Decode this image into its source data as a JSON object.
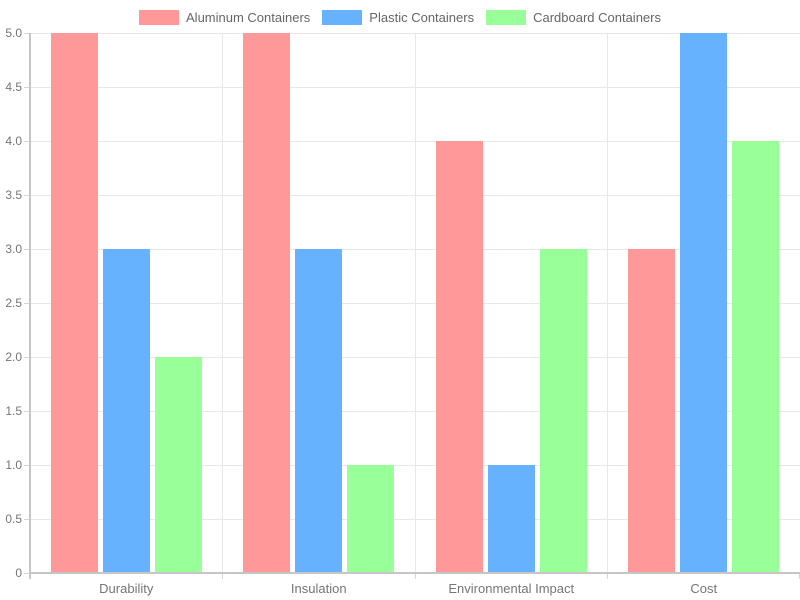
{
  "chart_data": {
    "type": "bar",
    "title": "",
    "xlabel": "",
    "ylabel": "",
    "categories": [
      "Durability",
      "Insulation",
      "Environmental Impact",
      "Cost"
    ],
    "series": [
      {
        "name": "Aluminum Containers",
        "color": "#FF9999",
        "values": [
          5,
          5,
          4,
          3
        ]
      },
      {
        "name": "Plastic Containers",
        "color": "#66B2FF",
        "values": [
          3,
          3,
          1,
          5
        ]
      },
      {
        "name": "Cardboard Containers",
        "color": "#99FF99",
        "values": [
          2,
          1,
          3,
          4
        ]
      }
    ],
    "ylim": [
      0,
      5
    ],
    "ytick_step": 0.5,
    "ytick_labels": [
      "0",
      "0.5",
      "1.0",
      "1.5",
      "2.0",
      "2.5",
      "3.0",
      "3.5",
      "4.0",
      "4.5",
      "5.0"
    ],
    "grid": true,
    "legend_position": "top",
    "style": {
      "background": "#ffffff",
      "gridline_color": "#e8e8e8",
      "axis_color": "#c6c6c6",
      "tick_color": "#d6d6d6",
      "tick_label_color": "#757575",
      "legend_text_color": "#666666"
    }
  }
}
